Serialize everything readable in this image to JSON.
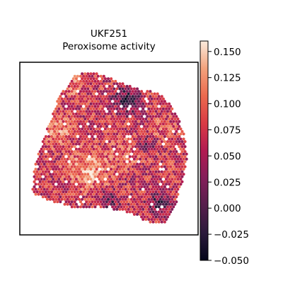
{
  "chart_data": {
    "type": "heatmap",
    "title_line1": "UKF251",
    "title_line2": "Peroxisome activity",
    "xlabel": "",
    "ylabel": "",
    "axes_ticks": false,
    "colorbar": {
      "colormap": "rocket",
      "vmin": -0.05,
      "vmax": 0.16,
      "ticks": [
        -0.05,
        -0.025,
        0.0,
        0.025,
        0.05,
        0.075,
        0.1,
        0.125,
        0.15
      ],
      "tick_labels": [
        "−0.050",
        "−0.025",
        "0.000",
        "0.025",
        "0.050",
        "0.075",
        "0.100",
        "0.125",
        "0.150"
      ]
    },
    "tissue_outline": [
      [
        0.33,
        0.05
      ],
      [
        0.46,
        0.07
      ],
      [
        0.62,
        0.14
      ],
      [
        0.78,
        0.18
      ],
      [
        0.86,
        0.26
      ],
      [
        0.92,
        0.4
      ],
      [
        0.94,
        0.55
      ],
      [
        0.91,
        0.7
      ],
      [
        0.87,
        0.84
      ],
      [
        0.82,
        0.94
      ],
      [
        0.7,
        0.92
      ],
      [
        0.58,
        0.86
      ],
      [
        0.44,
        0.84
      ],
      [
        0.3,
        0.84
      ],
      [
        0.16,
        0.8
      ],
      [
        0.07,
        0.76
      ],
      [
        0.08,
        0.62
      ],
      [
        0.12,
        0.48
      ],
      [
        0.17,
        0.34
      ],
      [
        0.22,
        0.2
      ]
    ],
    "hot_regions": [
      {
        "x": 0.38,
        "y": 0.62,
        "r": 0.18,
        "level": 0.135
      },
      {
        "x": 0.22,
        "y": 0.4,
        "r": 0.15,
        "level": 0.115
      },
      {
        "x": 0.6,
        "y": 0.52,
        "r": 0.14,
        "level": 0.105
      },
      {
        "x": 0.8,
        "y": 0.38,
        "r": 0.1,
        "level": 0.095
      },
      {
        "x": 0.3,
        "y": 0.14,
        "r": 0.1,
        "level": 0.11
      }
    ],
    "cold_regions": [
      {
        "x": 0.6,
        "y": 0.22,
        "r": 0.12,
        "level": -0.02
      },
      {
        "x": 0.78,
        "y": 0.82,
        "r": 0.1,
        "level": -0.01
      },
      {
        "x": 0.5,
        "y": 0.8,
        "r": 0.08,
        "level": 0.0
      },
      {
        "x": 0.7,
        "y": 0.48,
        "r": 0.07,
        "level": 0.01
      }
    ],
    "baseline_level": 0.07
  }
}
